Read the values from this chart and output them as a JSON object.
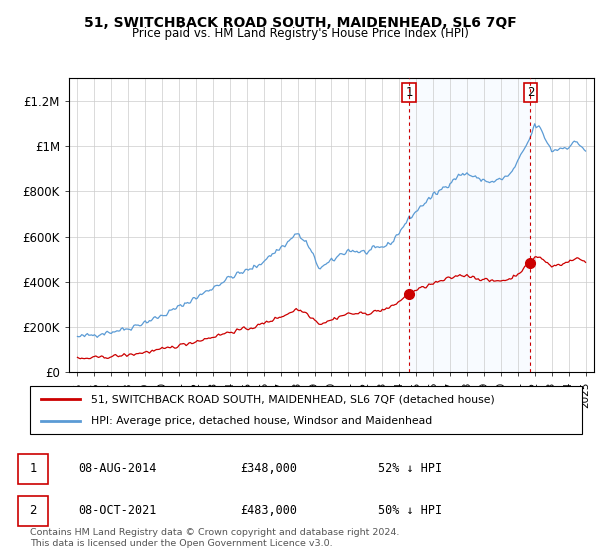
{
  "title": "51, SWITCHBACK ROAD SOUTH, MAIDENHEAD, SL6 7QF",
  "subtitle": "Price paid vs. HM Land Registry's House Price Index (HPI)",
  "property_color": "#cc0000",
  "hpi_color": "#5b9bd5",
  "shade_color": "#ddeeff",
  "legend_property": "51, SWITCHBACK ROAD SOUTH, MAIDENHEAD, SL6 7QF (detached house)",
  "legend_hpi": "HPI: Average price, detached house, Windsor and Maidenhead",
  "sale1_date": "08-AUG-2014",
  "sale1_price": 348000,
  "sale1_note": "52% ↓ HPI",
  "sale2_date": "08-OCT-2021",
  "sale2_price": 483000,
  "sale2_note": "50% ↓ HPI",
  "footer": "Contains HM Land Registry data © Crown copyright and database right 2024.\nThis data is licensed under the Open Government Licence v3.0.",
  "sale1_x": 2014.583,
  "sale2_x": 2021.75,
  "ylim": [
    0,
    1300000
  ],
  "yticks": [
    0,
    200000,
    400000,
    600000,
    800000,
    1000000,
    1200000
  ],
  "ytick_labels": [
    "£0",
    "£200K",
    "£400K",
    "£600K",
    "£800K",
    "£1M",
    "£1.2M"
  ],
  "xtick_years": [
    1995,
    1996,
    1997,
    1998,
    1999,
    2000,
    2001,
    2002,
    2003,
    2004,
    2005,
    2006,
    2007,
    2008,
    2009,
    2010,
    2011,
    2012,
    2013,
    2014,
    2015,
    2016,
    2017,
    2018,
    2019,
    2020,
    2021,
    2022,
    2023,
    2024,
    2025
  ]
}
